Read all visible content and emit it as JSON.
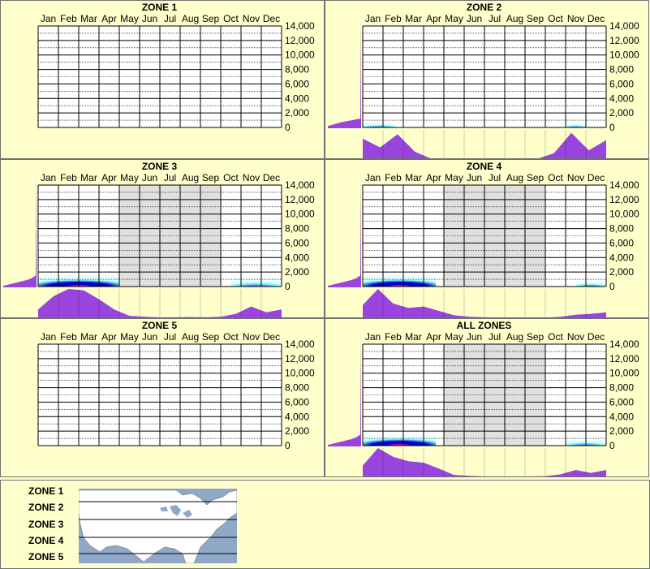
{
  "colors": {
    "background": "#ffffcc",
    "grid": "#000000",
    "shade": "#e0e0e0",
    "density_low": "#7fffff",
    "density_mid": "#0000cc",
    "density_high": "#ff0099",
    "histogram": "#9944dd",
    "map_water": "#8fa8c8",
    "map_land": "#ffffff"
  },
  "chart_data": [
    {
      "type": "heatmap",
      "title": "ZONE 1",
      "categories": [
        "Jan",
        "Feb",
        "Mar",
        "Apr",
        "May",
        "Jun",
        "Jul",
        "Aug",
        "Sep",
        "Oct",
        "Nov",
        "Dec"
      ],
      "y_ticks": [
        "14,000",
        "12,000",
        "10,000",
        "8,000",
        "6,000",
        "4,000",
        "2,000",
        "0"
      ],
      "ylim": [
        0,
        14000
      ],
      "shaded_months": [],
      "monthly_activity": [],
      "left_elevation_profile": [],
      "density_band": []
    },
    {
      "type": "heatmap",
      "title": "ZONE 2",
      "categories": [
        "Jan",
        "Feb",
        "Mar",
        "Apr",
        "May",
        "Jun",
        "Jul",
        "Aug",
        "Sep",
        "Oct",
        "Nov",
        "Dec"
      ],
      "y_ticks": [
        "14,000",
        "12,000",
        "10,000",
        "8,000",
        "6,000",
        "4,000",
        "2,000",
        "0"
      ],
      "ylim": [
        0,
        14000
      ],
      "shaded_months": [],
      "monthly_activity": [
        0.7,
        0.4,
        0.85,
        0.25,
        0,
        0,
        0,
        0,
        0,
        0,
        0,
        0.2,
        0.9,
        0.3,
        0.65
      ],
      "left_elevation_profile": [
        0.1,
        0.18,
        0.28,
        0.36,
        0.42,
        0.48,
        0.55,
        0.6
      ],
      "density_band": [
        {
          "start_month": 0.0,
          "end_month": 1.6,
          "max_elevation": 600,
          "peak": 0.2
        },
        {
          "start_month": 10.0,
          "end_month": 11.0,
          "max_elevation": 500,
          "peak": 0.2
        }
      ]
    },
    {
      "type": "heatmap",
      "title": "ZONE 3",
      "categories": [
        "Jan",
        "Feb",
        "Mar",
        "Apr",
        "May",
        "Jun",
        "Jul",
        "Aug",
        "Sep",
        "Oct",
        "Nov",
        "Dec"
      ],
      "y_ticks": [
        "14,000",
        "12,000",
        "10,000",
        "8,000",
        "6,000",
        "4,000",
        "2,000",
        "0"
      ],
      "ylim": [
        0,
        14000
      ],
      "shaded_months": [
        4,
        5,
        6,
        7,
        8
      ],
      "monthly_activity": [
        0.3,
        0.75,
        1.0,
        0.95,
        0.65,
        0.3,
        0.08,
        0.05,
        0.03,
        0.03,
        0.04,
        0.03,
        0.05,
        0.15,
        0.4,
        0.2,
        0.3
      ],
      "left_elevation_profile": [
        0.05,
        0.12,
        0.2,
        0.28,
        0.36,
        0.44,
        0.55,
        0.75
      ],
      "density_band": [
        {
          "start_month": 0.0,
          "end_month": 4.0,
          "max_elevation": 1500,
          "peak": 1.0
        },
        {
          "start_month": 9.5,
          "end_month": 12.0,
          "max_elevation": 1000,
          "peak": 0.5
        }
      ]
    },
    {
      "type": "heatmap",
      "title": "ZONE 4",
      "categories": [
        "Jan",
        "Feb",
        "Mar",
        "Apr",
        "May",
        "Jun",
        "Jul",
        "Aug",
        "Sep",
        "Oct",
        "Nov",
        "Dec"
      ],
      "y_ticks": [
        "14,000",
        "12,000",
        "10,000",
        "8,000",
        "6,000",
        "4,000",
        "2,000",
        "0"
      ],
      "ylim": [
        0,
        14000
      ],
      "shaded_months": [
        4,
        5,
        6,
        7,
        8
      ],
      "monthly_activity": [
        0.45,
        1.0,
        0.5,
        0.35,
        0.4,
        0.25,
        0.1,
        0.05,
        0.03,
        0.02,
        0.02,
        0.02,
        0.02,
        0.05,
        0.12,
        0.15,
        0.2
      ],
      "left_elevation_profile": [
        0.05,
        0.12,
        0.2,
        0.28,
        0.36,
        0.44,
        0.55,
        0.75
      ],
      "density_band": [
        {
          "start_month": 0.0,
          "end_month": 3.6,
          "max_elevation": 1500,
          "peak": 1.0
        },
        {
          "start_month": 10.5,
          "end_month": 12.0,
          "max_elevation": 700,
          "peak": 0.3
        }
      ]
    },
    {
      "type": "heatmap",
      "title": "ZONE 5",
      "categories": [
        "Jan",
        "Feb",
        "Mar",
        "Apr",
        "May",
        "Jun",
        "Jul",
        "Aug",
        "Sep",
        "Oct",
        "Nov",
        "Dec"
      ],
      "y_ticks": [
        "14,000",
        "12,000",
        "10,000",
        "8,000",
        "6,000",
        "4,000",
        "2,000",
        "0"
      ],
      "ylim": [
        0,
        14000
      ],
      "shaded_months": [],
      "monthly_activity": [],
      "left_elevation_profile": [],
      "density_band": []
    },
    {
      "type": "heatmap",
      "title": "ALL ZONES",
      "categories": [
        "Jan",
        "Feb",
        "Mar",
        "Apr",
        "May",
        "Jun",
        "Jul",
        "Aug",
        "Sep",
        "Oct",
        "Nov",
        "Dec"
      ],
      "y_ticks": [
        "14,000",
        "12,000",
        "10,000",
        "8,000",
        "6,000",
        "4,000",
        "2,000",
        "0"
      ],
      "ylim": [
        0,
        14000
      ],
      "shaded_months": [
        4,
        5,
        6,
        7,
        8
      ],
      "monthly_activity": [
        0.4,
        1.0,
        0.7,
        0.55,
        0.5,
        0.3,
        0.08,
        0.05,
        0.03,
        0.03,
        0.03,
        0.03,
        0.04,
        0.1,
        0.25,
        0.15,
        0.25
      ],
      "left_elevation_profile": [
        0.05,
        0.12,
        0.2,
        0.28,
        0.36,
        0.44,
        0.55,
        0.75
      ],
      "density_band": [
        {
          "start_month": 0.0,
          "end_month": 3.6,
          "max_elevation": 1500,
          "peak": 1.0
        },
        {
          "start_month": 10.0,
          "end_month": 12.0,
          "max_elevation": 800,
          "peak": 0.35
        }
      ]
    }
  ],
  "legend": {
    "zones": [
      "ZONE 1",
      "ZONE 2",
      "ZONE 3",
      "ZONE 4",
      "ZONE 5"
    ]
  }
}
